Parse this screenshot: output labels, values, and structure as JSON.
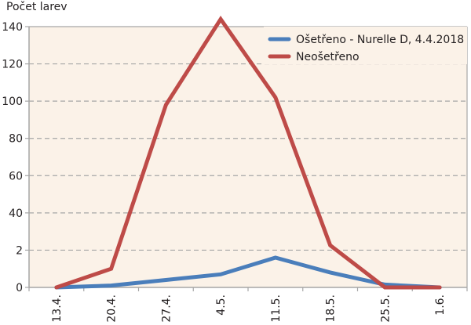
{
  "chart_data": {
    "type": "line",
    "title": "",
    "xlabel": "",
    "ylabel": "Počet larev",
    "categories": [
      "13.4.",
      "20.4.",
      "27.4.",
      "4.5.",
      "11.5.",
      "18.5.",
      "25.5.",
      "1.6."
    ],
    "y_ticks": [
      0,
      2,
      40,
      60,
      80,
      100,
      120,
      140
    ],
    "y_axis_note": "broken/non-linear scale: segments 0–2, 2–40, then linear 40–140",
    "ylim": [
      0,
      140
    ],
    "grid": "horizontal dashed",
    "legend_position": "top-right inside plot",
    "series": [
      {
        "name": "Ošetřeno - Nurelle D, 4.4.2018",
        "color": "#4a7ebb",
        "values": [
          0,
          0.1,
          0.4,
          0.7,
          1.6,
          0.8,
          0.15,
          0
        ]
      },
      {
        "name": "Neošetřeno",
        "color": "#be4b48",
        "values": [
          0,
          1,
          98,
          144,
          102,
          7,
          0,
          0
        ]
      }
    ]
  },
  "colors": {
    "plot_background": "#fbf2e8",
    "grid": "#a6a6a6",
    "axis": "#a6a6a6"
  }
}
